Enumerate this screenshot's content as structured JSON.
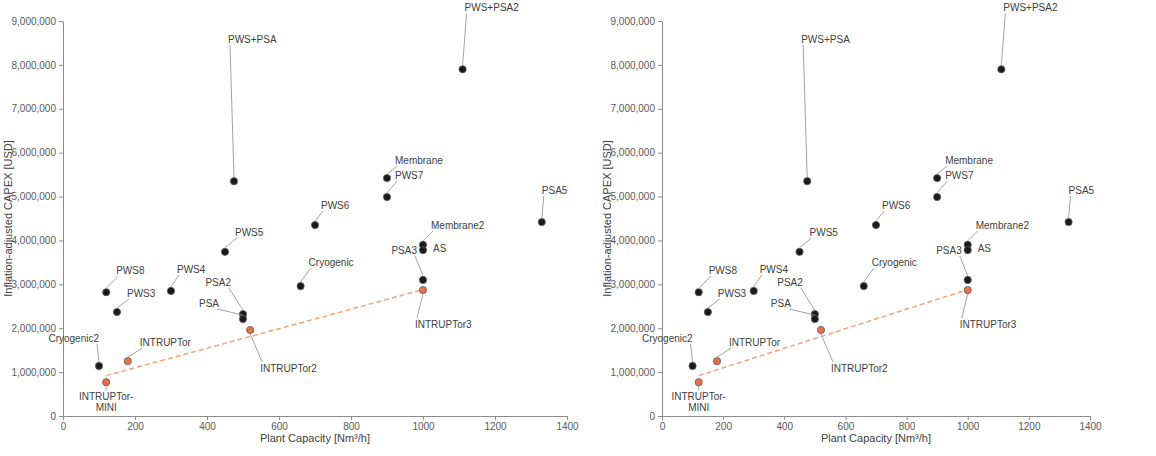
{
  "chart_data": [
    {
      "type": "scatter",
      "x_label": "Plant Capacity [Nm³/h]",
      "y_label": "Inflation-adjusted CAPEX [USD]",
      "xlim": [
        0,
        1400
      ],
      "xticks": [
        0,
        200,
        400,
        600,
        800,
        1000,
        1200,
        1400
      ],
      "ylim": [
        0,
        9000000
      ],
      "yticks": [
        0,
        {
          "value": 1000000,
          "label": "1,000,000"
        },
        {
          "value": 2000000,
          "label": "2,000,000"
        },
        {
          "value": 3000000,
          "label": "3,000,000"
        },
        {
          "value": 4000000,
          "label": "4,000,000"
        },
        {
          "value": 5000000,
          "label": "5,000,000"
        },
        {
          "value": 6000000,
          "label": "6,000,000"
        },
        {
          "value": 7000000,
          "label": "7,000,000"
        },
        {
          "value": 8000000,
          "label": "8,000,000"
        },
        {
          "value": 9000000,
          "label": "9,000,000"
        }
      ],
      "grid": false,
      "series": [
        {
          "type": "scatter",
          "marker": "circle",
          "color": "#1a1a1a",
          "labels": [
            "PWS+PSA2",
            "PWS+PSA",
            "Membrane",
            "PWS7",
            "PWS6",
            "PSA5",
            "PWS5",
            "Membrane2",
            "AS",
            "PSA3",
            "Cryogenic",
            "PWS8",
            "PWS4",
            "PWS3",
            "PSA2",
            "PSA",
            "Cryogenic2"
          ],
          "x": [
            1110,
            475,
            900,
            900,
            700,
            1330,
            450,
            1000,
            1000,
            1000,
            660,
            120,
            300,
            150,
            500,
            500,
            100
          ],
          "values": [
            7900000,
            5350000,
            5420000,
            4990000,
            4350000,
            4420000,
            3740000,
            3900000,
            3780000,
            3100000,
            2960000,
            2820000,
            2850000,
            2370000,
            2320000,
            2210000,
            1140000
          ]
        },
        {
          "type": "scatter",
          "marker": "circle",
          "color": "#e8734a",
          "labels": [
            "INTRUPTor",
            "INTRUPTor2",
            "INTRUPTor3",
            "INTRUPTor-\nMINI"
          ],
          "x": [
            180,
            520,
            1000,
            120
          ],
          "values": [
            1250000,
            1960000,
            2870000,
            770000
          ]
        },
        {
          "type": "line",
          "line_style": "dashed",
          "color": "#f2a477",
          "x": [
            120,
            1000
          ],
          "values": [
            920000,
            2880000
          ]
        }
      ]
    },
    {
      "type": "scatter",
      "x_label": "Plant Capacity [Nm³/h]",
      "y_label": "Inflation-adjusted CAPEX [USD]",
      "xlim": [
        0,
        1400
      ],
      "xticks": [
        0,
        200,
        400,
        600,
        800,
        1000,
        1200,
        1400
      ],
      "ylim": [
        0,
        9000000
      ],
      "yticks": [
        0,
        {
          "value": 1000000,
          "label": "1,000,000"
        },
        {
          "value": 2000000,
          "label": "2,000,000"
        },
        {
          "value": 3000000,
          "label": "3,000,000"
        },
        {
          "value": 4000000,
          "label": "4,000,000"
        },
        {
          "value": 5000000,
          "label": "5,000,000"
        },
        {
          "value": 6000000,
          "label": "6,000,000"
        },
        {
          "value": 7000000,
          "label": "7,000,000"
        },
        {
          "value": 8000000,
          "label": "8,000,000"
        },
        {
          "value": 9000000,
          "label": "9,000,000"
        }
      ],
      "grid": false,
      "series": [
        {
          "type": "scatter",
          "marker": "circle",
          "color": "#1a1a1a",
          "labels": [
            "PWS+PSA2",
            "PWS+PSA",
            "Membrane",
            "PWS7",
            "PWS6",
            "PSA5",
            "PWS5",
            "Membrane2",
            "AS",
            "PSA3",
            "Cryogenic",
            "PWS8",
            "PWS4",
            "PWS3",
            "PSA2",
            "PSA",
            "Cryogenic2"
          ],
          "x": [
            1110,
            475,
            900,
            900,
            700,
            1330,
            450,
            1000,
            1000,
            1000,
            660,
            120,
            300,
            150,
            500,
            500,
            100
          ],
          "values": [
            7900000,
            5350000,
            5420000,
            4990000,
            4350000,
            4420000,
            3740000,
            3900000,
            3780000,
            3100000,
            2960000,
            2820000,
            2850000,
            2370000,
            2320000,
            2210000,
            1140000
          ]
        },
        {
          "type": "scatter",
          "marker": "circle",
          "color": "#e8734a",
          "labels": [
            "INTRUPTor",
            "INTRUPTor2",
            "INTRUPTor3",
            "INTRUPTor-\nMINI"
          ],
          "x": [
            180,
            520,
            1000,
            120
          ],
          "values": [
            1250000,
            1960000,
            2870000,
            770000
          ]
        },
        {
          "type": "line",
          "line_style": "dashed",
          "color": "#f2a477",
          "x": [
            120,
            1000
          ],
          "values": [
            920000,
            2880000
          ]
        }
      ]
    }
  ]
}
